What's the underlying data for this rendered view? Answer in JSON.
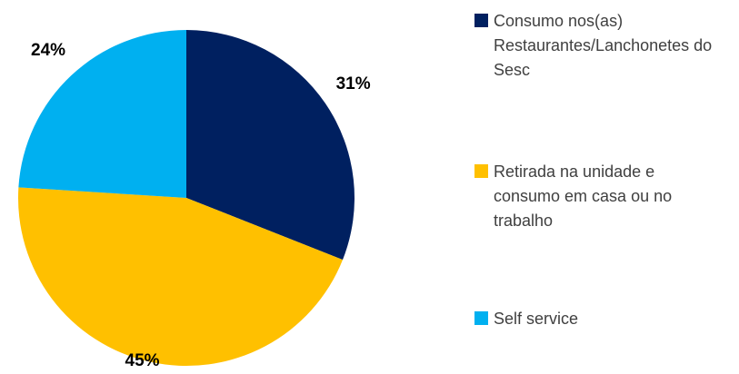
{
  "chart_data": {
    "type": "pie",
    "categories": [
      "Consumo nos(as) Restaurantes/Lanchonetes do Sesc",
      "Retirada na unidade e consumo em casa ou no trabalho",
      "Self service"
    ],
    "values": [
      31,
      45,
      24
    ],
    "value_labels": [
      "31%",
      "45%",
      "24%"
    ],
    "colors": [
      "#002060",
      "#FFC000",
      "#00B0F0"
    ],
    "legend": "right"
  }
}
